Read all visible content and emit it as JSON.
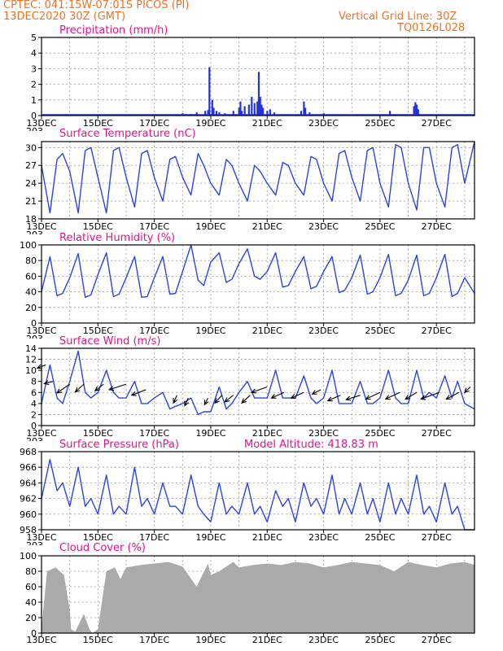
{
  "header": {
    "line1": "CPTEC:  041:15W-07:01S  PICOS (PI)",
    "line2": "13DEC2020 30Z (GMT)",
    "grid_note": "Vertical Grid Line: 30Z",
    "code": "TQ0126L028"
  },
  "colors": {
    "series": "#2a44e6",
    "bars": "#2233dd",
    "cloud": "#aaaaaa",
    "title": "#e0148c",
    "header": "#e8742a"
  },
  "x_axis": {
    "labels": [
      "13DEC",
      "15DEC",
      "17DEC",
      "19DEC",
      "21DEC",
      "23DEC",
      "25DEC",
      "27DEC"
    ],
    "cut_label": "203"
  },
  "chart_data": [
    {
      "type": "bar",
      "title": "Precipitation (mm/h)",
      "ylim": [
        0,
        5
      ],
      "yticks": [
        0,
        1,
        2,
        3,
        4,
        5
      ],
      "points": [
        [
          5.0,
          0.15
        ],
        [
          5.3,
          0.1
        ],
        [
          5.5,
          0.2
        ],
        [
          5.8,
          0.3
        ],
        [
          5.9,
          0.35
        ],
        [
          5.95,
          3.1
        ],
        [
          6.05,
          1.0
        ],
        [
          6.1,
          0.5
        ],
        [
          6.2,
          0.3
        ],
        [
          6.3,
          0.2
        ],
        [
          6.5,
          0.15
        ],
        [
          6.8,
          0.3
        ],
        [
          7.0,
          0.5
        ],
        [
          7.05,
          0.9
        ],
        [
          7.1,
          0.3
        ],
        [
          7.2,
          0.6
        ],
        [
          7.35,
          0.7
        ],
        [
          7.45,
          1.2
        ],
        [
          7.55,
          0.8
        ],
        [
          7.65,
          0.9
        ],
        [
          7.7,
          2.8
        ],
        [
          7.75,
          1.2
        ],
        [
          7.8,
          0.7
        ],
        [
          7.85,
          0.5
        ],
        [
          8.0,
          0.3
        ],
        [
          8.1,
          0.4
        ],
        [
          8.25,
          0.2
        ],
        [
          9.2,
          0.3
        ],
        [
          9.3,
          0.9
        ],
        [
          9.35,
          0.5
        ],
        [
          9.5,
          0.2
        ],
        [
          10.0,
          0.15
        ],
        [
          12.35,
          0.3
        ],
        [
          13.2,
          0.6
        ],
        [
          13.25,
          0.85
        ],
        [
          13.3,
          0.7
        ],
        [
          13.35,
          0.4
        ]
      ]
    },
    {
      "type": "line",
      "title": "Surface Temperature (nC)",
      "ylim": [
        18,
        31
      ],
      "yticks": [
        18,
        21,
        24,
        27,
        30
      ],
      "x": [
        0,
        0.3,
        0.55,
        0.75,
        1.0,
        1.3,
        1.55,
        1.75,
        2.0,
        2.3,
        2.55,
        2.75,
        3.0,
        3.3,
        3.55,
        3.75,
        4.0,
        4.3,
        4.55,
        4.75,
        5.0,
        5.3,
        5.55,
        5.75,
        6.0,
        6.3,
        6.55,
        6.75,
        7.0,
        7.3,
        7.55,
        7.75,
        8.0,
        8.3,
        8.55,
        8.75,
        9.0,
        9.3,
        9.55,
        9.75,
        10.0,
        10.3,
        10.55,
        10.75,
        11.0,
        11.3,
        11.55,
        11.75,
        12.0,
        12.3,
        12.55,
        12.75,
        13.0,
        13.3,
        13.55,
        13.75,
        14.0,
        14.3,
        14.55,
        14.75,
        15.0,
        15.35
      ],
      "y": [
        27,
        19,
        28,
        29,
        26,
        19,
        29.5,
        30,
        25,
        19,
        29.5,
        30,
        25,
        20,
        29,
        29.5,
        25,
        21,
        28,
        28.5,
        25,
        22,
        29,
        27,
        24,
        22,
        28,
        27,
        24,
        21,
        27,
        26,
        24,
        22,
        27.5,
        27,
        24,
        22,
        28.5,
        28,
        24,
        21,
        29,
        29.5,
        25,
        21,
        29.5,
        30,
        24,
        20,
        30.5,
        30,
        24,
        19.5,
        30,
        30,
        24,
        20,
        30,
        30.5,
        24,
        31
      ]
    },
    {
      "type": "line",
      "title": "Relative Humidity (%)",
      "ylim": [
        0,
        100
      ],
      "yticks": [
        0,
        20,
        40,
        60,
        80,
        100
      ],
      "x": [
        0,
        0.3,
        0.55,
        0.75,
        1.0,
        1.3,
        1.55,
        1.75,
        2.0,
        2.3,
        2.55,
        2.75,
        3.0,
        3.3,
        3.55,
        3.75,
        4.0,
        4.3,
        4.55,
        4.75,
        5.0,
        5.3,
        5.55,
        5.75,
        6.0,
        6.3,
        6.55,
        6.75,
        7.0,
        7.3,
        7.55,
        7.75,
        8.0,
        8.3,
        8.55,
        8.75,
        9.0,
        9.3,
        9.55,
        9.75,
        10.0,
        10.3,
        10.55,
        10.75,
        11.0,
        11.3,
        11.55,
        11.75,
        12.0,
        12.3,
        12.55,
        12.75,
        13.0,
        13.3,
        13.55,
        13.75,
        14.0,
        14.3,
        14.55,
        14.75,
        15.0,
        15.35
      ],
      "y": [
        40,
        85,
        35,
        38,
        58,
        89,
        33,
        36,
        62,
        90,
        34,
        37,
        58,
        85,
        33,
        34,
        58,
        85,
        37,
        38,
        66,
        100,
        55,
        48,
        78,
        90,
        52,
        56,
        76,
        95,
        60,
        56,
        66,
        90,
        46,
        48,
        66,
        85,
        44,
        47,
        66,
        85,
        39,
        42,
        58,
        87,
        37,
        40,
        58,
        88,
        35,
        38,
        55,
        87,
        35,
        38,
        58,
        88,
        34,
        38,
        58,
        38
      ]
    },
    {
      "type": "line",
      "title": "Surface Wind (m/s)",
      "ylim": [
        0,
        14
      ],
      "yticks": [
        0,
        2,
        4,
        6,
        8,
        10,
        12,
        14
      ],
      "x": [
        0,
        0.3,
        0.55,
        0.75,
        1.0,
        1.3,
        1.55,
        1.75,
        2.0,
        2.3,
        2.55,
        2.75,
        3.0,
        3.3,
        3.55,
        3.75,
        4.0,
        4.3,
        4.55,
        4.75,
        5.0,
        5.3,
        5.55,
        5.75,
        6.0,
        6.3,
        6.55,
        6.75,
        7.0,
        7.3,
        7.55,
        7.75,
        8.0,
        8.3,
        8.55,
        8.75,
        9.0,
        9.3,
        9.55,
        9.75,
        10.0,
        10.3,
        10.55,
        10.75,
        11.0,
        11.3,
        11.55,
        11.75,
        12.0,
        12.3,
        12.55,
        12.75,
        13.0,
        13.3,
        13.55,
        13.75,
        14.0,
        14.3,
        14.55,
        14.75,
        15.0,
        15.35
      ],
      "y": [
        4,
        11,
        5,
        4,
        8,
        13.5,
        6,
        5,
        6,
        10,
        6,
        5,
        5,
        8,
        4,
        4,
        5,
        6,
        3,
        3.5,
        4,
        5,
        2,
        2.5,
        2.5,
        7,
        3,
        4,
        6,
        8,
        5,
        5,
        5,
        10,
        5,
        5,
        5,
        9,
        5,
        4,
        5,
        10,
        4,
        4,
        4,
        8,
        4,
        4,
        5,
        10,
        5,
        4,
        4,
        10,
        5,
        6,
        5,
        9,
        5,
        8,
        4,
        3
      ]
    },
    {
      "type": "line",
      "title": "Surface Pressure (hPa)",
      "annotation": "Model Altitude: 418.83 m",
      "ylim": [
        958,
        968
      ],
      "yticks": [
        958,
        960,
        962,
        964,
        966,
        968
      ],
      "x": [
        0,
        0.3,
        0.55,
        0.75,
        1.0,
        1.3,
        1.55,
        1.75,
        2.0,
        2.3,
        2.55,
        2.75,
        3.0,
        3.3,
        3.55,
        3.75,
        4.0,
        4.3,
        4.55,
        4.75,
        5.0,
        5.3,
        5.55,
        5.75,
        6.0,
        6.3,
        6.55,
        6.75,
        7.0,
        7.3,
        7.55,
        7.75,
        8.0,
        8.3,
        8.55,
        8.75,
        9.0,
        9.3,
        9.55,
        9.75,
        10.0,
        10.3,
        10.55,
        10.75,
        11.0,
        11.3,
        11.55,
        11.75,
        12.0,
        12.3,
        12.55,
        12.75,
        13.0,
        13.3,
        13.55,
        13.75,
        14.0,
        14.3,
        14.55,
        14.75,
        15.0,
        15.35
      ],
      "y": [
        962,
        967,
        963,
        964,
        961,
        966,
        961,
        962,
        960,
        965,
        960,
        961,
        960,
        966,
        961,
        962,
        960,
        964,
        961,
        961,
        960,
        965,
        961,
        960,
        959,
        964,
        960,
        961,
        960,
        964,
        960,
        961,
        959,
        963,
        961,
        962,
        959,
        964,
        961,
        962,
        960,
        965,
        960,
        962,
        960,
        964,
        960,
        962,
        959,
        964,
        960,
        962,
        960,
        965,
        960,
        961,
        959,
        964,
        960,
        961,
        958,
        958
      ]
    },
    {
      "type": "area",
      "title": "Cloud Cover (%)",
      "ylim": [
        0,
        100
      ],
      "yticks": [
        0,
        20,
        40,
        60,
        80,
        100
      ],
      "x": [
        0,
        0.2,
        0.5,
        0.8,
        1.0,
        1.05,
        1.2,
        1.5,
        1.7,
        1.8,
        2.0,
        2.3,
        2.6,
        2.8,
        3.0,
        3.5,
        4.0,
        4.5,
        5.0,
        5.5,
        5.9,
        6.0,
        6.3,
        6.8,
        7.0,
        7.5,
        8.0,
        8.5,
        9.0,
        9.5,
        10.0,
        10.5,
        11.0,
        11.5,
        12.0,
        12.5,
        13.0,
        13.5,
        14.0,
        14.5,
        15.0,
        15.35
      ],
      "y": [
        8,
        80,
        85,
        75,
        30,
        5,
        2,
        25,
        5,
        0,
        5,
        80,
        85,
        70,
        85,
        88,
        90,
        92,
        86,
        60,
        90,
        75,
        80,
        92,
        85,
        88,
        90,
        88,
        92,
        90,
        85,
        88,
        92,
        90,
        88,
        80,
        92,
        88,
        85,
        90,
        92,
        88
      ]
    }
  ],
  "wind_arrows": [
    {
      "x": 0.15,
      "y": 11,
      "dx": -0.3,
      "dy": 0.15
    },
    {
      "x": 0.4,
      "y": 8,
      "dx": -0.3,
      "dy": 0.1
    },
    {
      "x": 1.0,
      "y": 7.5,
      "dx": -0.45,
      "dy": 0.4
    },
    {
      "x": 1.5,
      "y": 7.5,
      "dx": -0.3,
      "dy": 0.35
    },
    {
      "x": 2.2,
      "y": 7.5,
      "dx": -0.3,
      "dy": 0.3
    },
    {
      "x": 3.0,
      "y": 7.5,
      "dx": -0.6,
      "dy": 0.25
    },
    {
      "x": 3.7,
      "y": 6.5,
      "dx": -0.5,
      "dy": 0.25
    },
    {
      "x": 4.8,
      "y": 5.5,
      "dx": -0.12,
      "dy": 0.35
    },
    {
      "x": 5.2,
      "y": 5,
      "dx": -0.12,
      "dy": 0.35
    },
    {
      "x": 5.9,
      "y": 5,
      "dx": -0.12,
      "dy": 0.3
    },
    {
      "x": 6.4,
      "y": 5.5,
      "dx": -0.25,
      "dy": 0.35
    },
    {
      "x": 6.8,
      "y": 5.5,
      "dx": -0.3,
      "dy": 0.3
    },
    {
      "x": 7.4,
      "y": 5.5,
      "dx": -0.3,
      "dy": 0.35
    },
    {
      "x": 8.0,
      "y": 7,
      "dx": -0.55,
      "dy": 0.25
    },
    {
      "x": 8.6,
      "y": 6,
      "dx": -0.45,
      "dy": 0.25
    },
    {
      "x": 9.3,
      "y": 6,
      "dx": -0.45,
      "dy": 0.25
    },
    {
      "x": 9.9,
      "y": 6.5,
      "dx": -0.3,
      "dy": 0.2
    },
    {
      "x": 10.6,
      "y": 5.5,
      "dx": -0.45,
      "dy": 0.25
    },
    {
      "x": 11.3,
      "y": 5.5,
      "dx": -0.5,
      "dy": 0.2
    },
    {
      "x": 12.0,
      "y": 6,
      "dx": -0.5,
      "dy": 0.3
    },
    {
      "x": 12.7,
      "y": 6,
      "dx": -0.5,
      "dy": 0.3
    },
    {
      "x": 13.3,
      "y": 6,
      "dx": -0.4,
      "dy": 0.3
    },
    {
      "x": 14.1,
      "y": 6,
      "dx": -0.65,
      "dy": 0.3
    },
    {
      "x": 14.8,
      "y": 6,
      "dx": -0.45,
      "dy": 0.3
    },
    {
      "x": 15.2,
      "y": 7,
      "dx": -0.2,
      "dy": 0.25
    }
  ]
}
